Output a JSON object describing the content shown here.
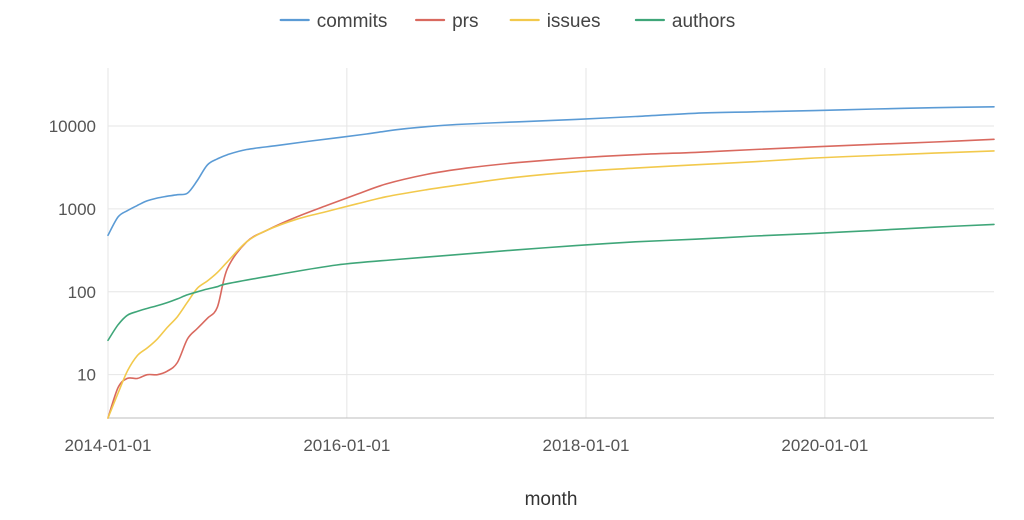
{
  "chart_data": {
    "type": "line",
    "title": "",
    "xlabel": "month",
    "ylabel": "",
    "y_scale": "log",
    "ylim": [
      3,
      50000
    ],
    "xlim": [
      "2014-01-01",
      "2021-06-01"
    ],
    "x_ticks": [
      "2014-01-01",
      "2016-01-01",
      "2018-01-01",
      "2020-01-01"
    ],
    "y_ticks": [
      10,
      100,
      1000,
      10000
    ],
    "y_tick_labels": [
      "10",
      "100",
      "1000",
      "10000"
    ],
    "grid": true,
    "legend_position": "top-center",
    "series": [
      {
        "name": "commits",
        "color": "#5b9bd5",
        "points": [
          [
            "2014-01-01",
            480
          ],
          [
            "2014-02-01",
            800
          ],
          [
            "2014-03-01",
            950
          ],
          [
            "2014-04-01",
            1100
          ],
          [
            "2014-05-01",
            1250
          ],
          [
            "2014-06-01",
            1350
          ],
          [
            "2014-07-01",
            1420
          ],
          [
            "2014-08-01",
            1480
          ],
          [
            "2014-09-01",
            1550
          ],
          [
            "2014-10-01",
            2200
          ],
          [
            "2014-11-01",
            3400
          ],
          [
            "2014-12-01",
            4000
          ],
          [
            "2015-01-01",
            4500
          ],
          [
            "2015-03-01",
            5200
          ],
          [
            "2015-06-01",
            5800
          ],
          [
            "2015-09-01",
            6500
          ],
          [
            "2015-12-01",
            7200
          ],
          [
            "2016-03-01",
            8000
          ],
          [
            "2016-06-01",
            9000
          ],
          [
            "2016-09-01",
            9800
          ],
          [
            "2016-12-01",
            10400
          ],
          [
            "2017-06-01",
            11200
          ],
          [
            "2017-12-01",
            12000
          ],
          [
            "2018-06-01",
            13000
          ],
          [
            "2018-12-01",
            14200
          ],
          [
            "2019-06-01",
            14800
          ],
          [
            "2019-12-01",
            15300
          ],
          [
            "2020-06-01",
            16000
          ],
          [
            "2020-12-01",
            16600
          ],
          [
            "2021-06-01",
            17000
          ]
        ]
      },
      {
        "name": "prs",
        "color": "#d9695f",
        "points": [
          [
            "2014-01-01",
            3
          ],
          [
            "2014-02-01",
            7
          ],
          [
            "2014-03-01",
            9
          ],
          [
            "2014-04-01",
            9
          ],
          [
            "2014-05-01",
            10
          ],
          [
            "2014-06-01",
            10
          ],
          [
            "2014-07-01",
            11
          ],
          [
            "2014-08-01",
            14
          ],
          [
            "2014-09-01",
            27
          ],
          [
            "2014-10-01",
            36
          ],
          [
            "2014-11-01",
            48
          ],
          [
            "2014-12-01",
            65
          ],
          [
            "2015-01-01",
            190
          ],
          [
            "2015-03-01",
            400
          ],
          [
            "2015-05-01",
            550
          ],
          [
            "2015-08-01",
            800
          ],
          [
            "2015-11-01",
            1100
          ],
          [
            "2016-02-01",
            1500
          ],
          [
            "2016-05-01",
            2000
          ],
          [
            "2016-09-01",
            2600
          ],
          [
            "2017-01-01",
            3100
          ],
          [
            "2017-06-01",
            3600
          ],
          [
            "2017-12-01",
            4100
          ],
          [
            "2018-06-01",
            4500
          ],
          [
            "2018-12-01",
            4800
          ],
          [
            "2019-06-01",
            5200
          ],
          [
            "2019-12-01",
            5600
          ],
          [
            "2020-06-01",
            6000
          ],
          [
            "2020-12-01",
            6400
          ],
          [
            "2021-06-01",
            6900
          ]
        ]
      },
      {
        "name": "issues",
        "color": "#f2c94c",
        "points": [
          [
            "2014-01-01",
            3
          ],
          [
            "2014-02-01",
            6
          ],
          [
            "2014-03-01",
            11
          ],
          [
            "2014-04-01",
            17
          ],
          [
            "2014-05-01",
            21
          ],
          [
            "2014-06-01",
            27
          ],
          [
            "2014-07-01",
            37
          ],
          [
            "2014-08-01",
            50
          ],
          [
            "2014-09-01",
            75
          ],
          [
            "2014-10-01",
            110
          ],
          [
            "2014-11-01",
            135
          ],
          [
            "2014-12-01",
            170
          ],
          [
            "2015-01-01",
            230
          ],
          [
            "2015-03-01",
            400
          ],
          [
            "2015-05-01",
            550
          ],
          [
            "2015-08-01",
            750
          ],
          [
            "2015-11-01",
            930
          ],
          [
            "2016-02-01",
            1150
          ],
          [
            "2016-05-01",
            1400
          ],
          [
            "2016-09-01",
            1700
          ],
          [
            "2017-01-01",
            2000
          ],
          [
            "2017-06-01",
            2400
          ],
          [
            "2017-12-01",
            2800
          ],
          [
            "2018-06-01",
            3100
          ],
          [
            "2018-12-01",
            3400
          ],
          [
            "2019-06-01",
            3700
          ],
          [
            "2019-12-01",
            4100
          ],
          [
            "2020-06-01",
            4400
          ],
          [
            "2020-12-01",
            4700
          ],
          [
            "2021-06-01",
            5000
          ]
        ]
      },
      {
        "name": "authors",
        "color": "#3fa679",
        "points": [
          [
            "2014-01-01",
            26
          ],
          [
            "2014-02-01",
            40
          ],
          [
            "2014-03-01",
            52
          ],
          [
            "2014-04-01",
            58
          ],
          [
            "2014-05-01",
            63
          ],
          [
            "2014-06-01",
            68
          ],
          [
            "2014-07-01",
            74
          ],
          [
            "2014-08-01",
            82
          ],
          [
            "2014-09-01",
            92
          ],
          [
            "2014-10-01",
            100
          ],
          [
            "2014-11-01",
            108
          ],
          [
            "2014-12-01",
            115
          ],
          [
            "2015-01-01",
            125
          ],
          [
            "2015-06-01",
            160
          ],
          [
            "2015-12-01",
            210
          ],
          [
            "2016-06-01",
            245
          ],
          [
            "2016-12-01",
            280
          ],
          [
            "2017-06-01",
            320
          ],
          [
            "2017-12-01",
            360
          ],
          [
            "2018-06-01",
            400
          ],
          [
            "2018-12-01",
            430
          ],
          [
            "2019-06-01",
            470
          ],
          [
            "2019-12-01",
            505
          ],
          [
            "2020-06-01",
            550
          ],
          [
            "2020-12-01",
            600
          ],
          [
            "2021-06-01",
            650
          ]
        ]
      }
    ]
  }
}
